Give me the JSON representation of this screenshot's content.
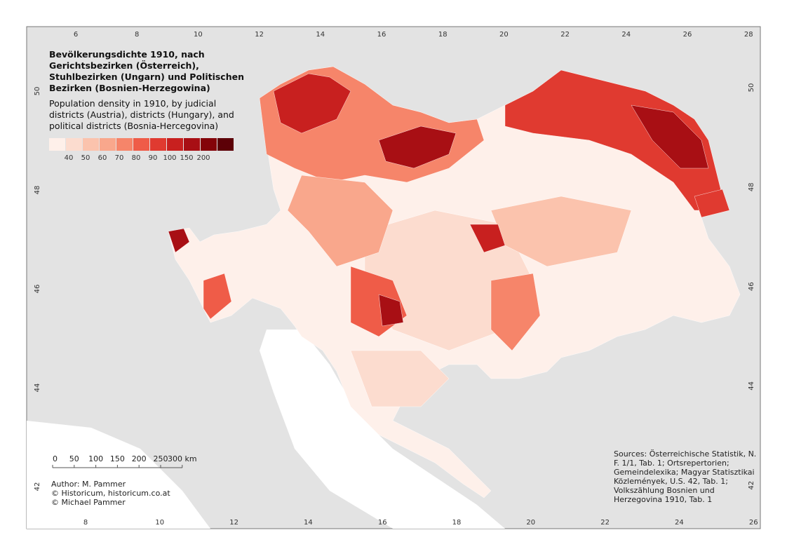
{
  "title": [
    "Bevölkerungsdichte 1910, nach",
    "Gerichtsbezirken (Österreich),",
    "Stuhlbezirken (Ungarn) und Politischen",
    "Bezirken (Bosnien-Herzegowina)"
  ],
  "subtitle": [
    "Population density in 1910, by judicial",
    "districts (Austria), districts (Hungary), and",
    "political districts (Bosnia-Hercegovina)"
  ],
  "legend": {
    "colors": [
      "#fef0ea",
      "#fcdccf",
      "#fbc3ad",
      "#f9a78c",
      "#f6856a",
      "#ef5c48",
      "#e03a30",
      "#c8201f",
      "#a80f14",
      "#840309",
      "#5c0007"
    ],
    "labels": [
      40,
      50,
      60,
      70,
      80,
      90,
      100,
      150,
      200
    ]
  },
  "frame": {
    "top_ticks": [
      6,
      8,
      10,
      12,
      14,
      16,
      18,
      20,
      22,
      24,
      26,
      28
    ],
    "bottom_ticks": [
      8,
      10,
      12,
      14,
      16,
      18,
      20,
      22,
      24,
      26
    ],
    "left_ticks": [
      42,
      44,
      46,
      48,
      50
    ],
    "right_ticks": [
      42,
      44,
      46,
      48,
      50
    ]
  },
  "scale_bar": [
    "0",
    "50",
    "100",
    "150",
    "200",
    "250",
    "300 km"
  ],
  "credits": [
    "Author: M. Pammer",
    "© Historicum, historicum.co.at",
    "© Michael Pammer"
  ],
  "sources": [
    "Sources: Österreichische Statistik, N.",
    "F. 1/1, Tab. 1; Ortsrepertorien;",
    "Gemeindelexika; Magyar Statisztikai",
    "Közlemények, U.S. 42, Tab. 1;",
    "Volkszählung Bosnien und",
    "Herzegovina 1910, Tab. 1"
  ]
}
